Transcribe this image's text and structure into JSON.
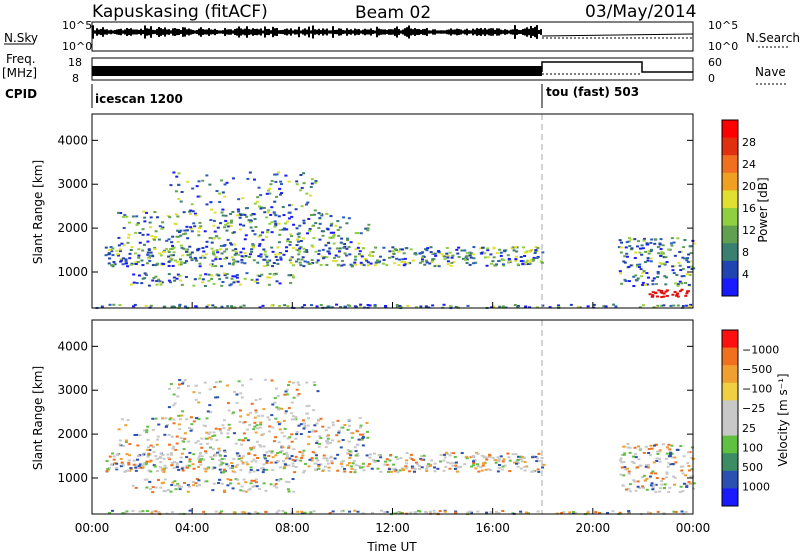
{
  "header": {
    "station": "Kapuskasing (fitACF)",
    "beam": "Beam 02",
    "date": "03/May/2014"
  },
  "side_labels": {
    "nsky": "N.Sky",
    "nsearch": "N.Search",
    "freq_top": "Freq.",
    "freq_unit": "[MHz]",
    "nave": "Nave",
    "cpid": "CPID"
  },
  "noise_panel": {
    "left_ticks": [
      "10^5",
      "10^0"
    ],
    "right_ticks": [
      "10^5",
      "10^0"
    ]
  },
  "freq_panel": {
    "left_ticks": [
      "18",
      "8"
    ],
    "right_ticks": [
      "60",
      "0"
    ]
  },
  "cpid_panel": {
    "segments": [
      {
        "label": "icescan 1200",
        "start_h": 0,
        "end_h": 18
      },
      {
        "label": "tou (fast) 503",
        "start_h": 18,
        "end_h": 24
      }
    ]
  },
  "chart_data": [
    {
      "type": "heatmap",
      "name": "power",
      "ylabel": "Slant Range [km]",
      "y_ticks": [
        "1000",
        "2000",
        "3000",
        "4000"
      ],
      "ylim": [
        180,
        4600
      ],
      "colorbar": {
        "label": "Power [dB]",
        "ticks": [
          "4",
          "8",
          "12",
          "16",
          "20",
          "24",
          "28"
        ],
        "colors": [
          "#1a1aff",
          "#2045b0",
          "#3a8070",
          "#60a050",
          "#90d040",
          "#e0e030",
          "#f0a020",
          "#f07020",
          "#e03010",
          "#ff0000"
        ]
      }
    },
    {
      "type": "heatmap",
      "name": "velocity",
      "ylabel": "Slant Range [km]",
      "y_ticks": [
        "1000",
        "2000",
        "3000",
        "4000"
      ],
      "ylim": [
        180,
        4600
      ],
      "colorbar": {
        "label": "Velocity [m s⁻¹]",
        "ticks": [
          "1000",
          "500",
          "100",
          "25",
          "−25",
          "−100",
          "−500",
          "−1000"
        ],
        "colors": [
          "#1a1aff",
          "#2a50b0",
          "#3c8c64",
          "#60c040",
          "#c8c8c8",
          "#c8c8c8",
          "#f0d040",
          "#f0a030",
          "#f07020",
          "#ff1010"
        ]
      }
    }
  ],
  "x_axis": {
    "label": "Time UT",
    "ticks": [
      "00:00",
      "04:00",
      "08:00",
      "12:00",
      "16:00",
      "20:00",
      "00:00"
    ],
    "xlim_h": [
      0,
      24
    ]
  }
}
